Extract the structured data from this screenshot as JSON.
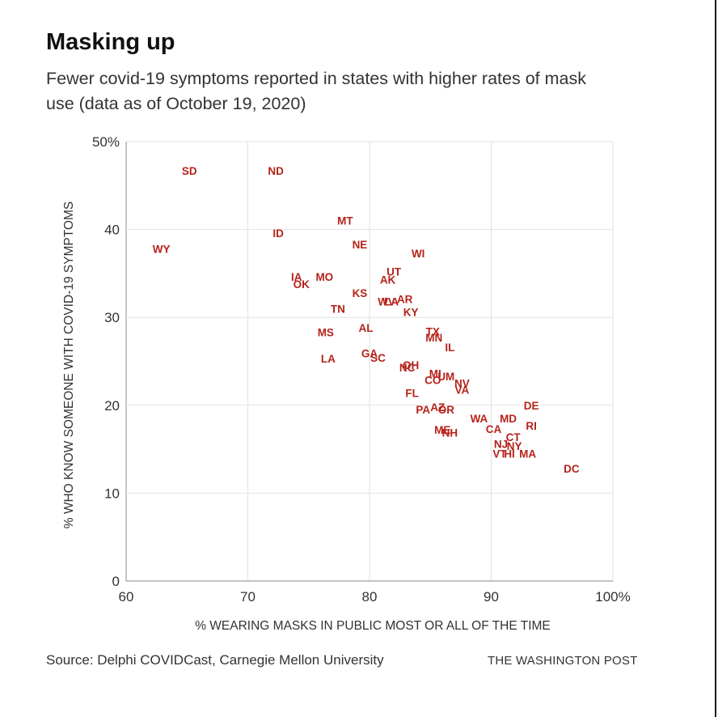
{
  "title": "Masking up",
  "subtitle": "Fewer covid-19 symptoms reported in states with higher rates of mask use (data as of October 19, 2020)",
  "source": "Source: Delphi COVIDCast, Carnegie Mellon University",
  "credit": "THE WASHINGTON POST",
  "chart_data": {
    "type": "scatter",
    "xlabel": "% WEARING MASKS IN PUBLIC MOST OR ALL OF THE TIME",
    "ylabel": "% WHO KNOW SOMEONE WITH COVID-19 SYMPTOMS",
    "xlim": [
      60,
      100
    ],
    "ylim": [
      0,
      50
    ],
    "xticks": [
      60,
      70,
      80,
      90,
      100
    ],
    "xtick_labels": [
      "60",
      "70",
      "80",
      "90",
      "100%"
    ],
    "yticks": [
      0,
      10,
      20,
      30,
      40,
      50
    ],
    "ytick_labels": [
      "0",
      "10",
      "20",
      "30",
      "40",
      "50%"
    ],
    "grid": true,
    "marker_color": "#b5231b",
    "points": [
      {
        "label": "SD",
        "x": 65.2,
        "y": 46.7
      },
      {
        "label": "ND",
        "x": 72.3,
        "y": 46.7
      },
      {
        "label": "WY",
        "x": 62.9,
        "y": 37.8
      },
      {
        "label": "ID",
        "x": 72.5,
        "y": 39.6
      },
      {
        "label": "MT",
        "x": 78.0,
        "y": 41.0
      },
      {
        "label": "NE",
        "x": 79.2,
        "y": 38.3
      },
      {
        "label": "WI",
        "x": 84.0,
        "y": 37.3
      },
      {
        "label": "IA",
        "x": 74.0,
        "y": 34.6
      },
      {
        "label": "OK",
        "x": 74.4,
        "y": 33.8
      },
      {
        "label": "MO",
        "x": 76.3,
        "y": 34.6
      },
      {
        "label": "UT",
        "x": 82.0,
        "y": 35.2
      },
      {
        "label": "AK",
        "x": 81.5,
        "y": 34.3
      },
      {
        "label": "KS",
        "x": 79.2,
        "y": 32.8
      },
      {
        "label": "WV",
        "x": 81.4,
        "y": 31.8
      },
      {
        "label": "LA",
        "x": 81.8,
        "y": 31.8
      },
      {
        "label": "AR",
        "x": 82.9,
        "y": 32.1
      },
      {
        "label": "KY",
        "x": 83.4,
        "y": 30.6
      },
      {
        "label": "TN",
        "x": 77.4,
        "y": 31.0
      },
      {
        "label": "AL",
        "x": 79.7,
        "y": 28.8
      },
      {
        "label": "MS",
        "x": 76.4,
        "y": 28.3
      },
      {
        "label": "TX",
        "x": 85.2,
        "y": 28.4
      },
      {
        "label": "MN",
        "x": 85.3,
        "y": 27.7
      },
      {
        "label": "IL",
        "x": 86.6,
        "y": 26.6
      },
      {
        "label": "LA",
        "x": 76.6,
        "y": 25.3
      },
      {
        "label": "GA",
        "x": 80.0,
        "y": 25.9
      },
      {
        "label": "SC",
        "x": 80.7,
        "y": 25.4
      },
      {
        "label": "OH",
        "x": 83.4,
        "y": 24.6
      },
      {
        "label": "NC",
        "x": 83.1,
        "y": 24.3
      },
      {
        "label": "MI",
        "x": 85.4,
        "y": 23.6
      },
      {
        "label": "CO",
        "x": 85.2,
        "y": 22.9
      },
      {
        "label": "UM",
        "x": 86.3,
        "y": 23.3
      },
      {
        "label": "NV",
        "x": 87.6,
        "y": 22.5
      },
      {
        "label": "VA",
        "x": 87.6,
        "y": 21.8
      },
      {
        "label": "FL",
        "x": 83.5,
        "y": 21.4
      },
      {
        "label": "PA",
        "x": 84.4,
        "y": 19.5
      },
      {
        "label": "AZ",
        "x": 85.6,
        "y": 19.8
      },
      {
        "label": "OR",
        "x": 86.3,
        "y": 19.5
      },
      {
        "label": "WA",
        "x": 89.0,
        "y": 18.5
      },
      {
        "label": "MD",
        "x": 91.4,
        "y": 18.5
      },
      {
        "label": "DE",
        "x": 93.3,
        "y": 20.0
      },
      {
        "label": "RI",
        "x": 93.3,
        "y": 17.7
      },
      {
        "label": "ME",
        "x": 86.0,
        "y": 17.2
      },
      {
        "label": "NH",
        "x": 86.6,
        "y": 16.9
      },
      {
        "label": "CA",
        "x": 90.2,
        "y": 17.3
      },
      {
        "label": "CT",
        "x": 91.8,
        "y": 16.4
      },
      {
        "label": "NJ",
        "x": 90.8,
        "y": 15.6
      },
      {
        "label": "NY",
        "x": 91.9,
        "y": 15.4
      },
      {
        "label": "VT",
        "x": 90.7,
        "y": 14.5
      },
      {
        "label": "HI",
        "x": 91.5,
        "y": 14.5
      },
      {
        "label": "MA",
        "x": 93.0,
        "y": 14.5
      },
      {
        "label": "DC",
        "x": 96.6,
        "y": 12.8
      }
    ]
  }
}
